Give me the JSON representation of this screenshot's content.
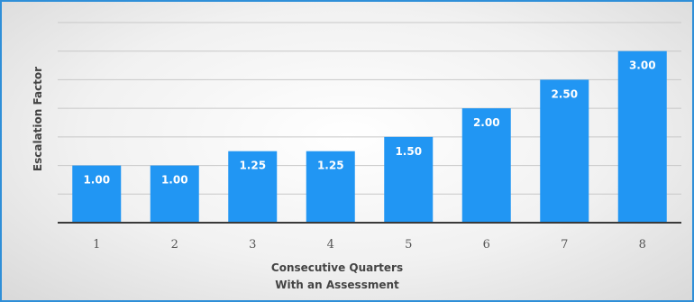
{
  "chart_data": {
    "type": "bar",
    "categories": [
      "1",
      "2",
      "3",
      "4",
      "5",
      "6",
      "7",
      "8"
    ],
    "values": [
      1.0,
      1.0,
      1.25,
      1.25,
      1.5,
      2.0,
      2.5,
      3.0
    ],
    "value_labels": [
      "1.00",
      "1.00",
      "1.25",
      "1.25",
      "1.50",
      "2.00",
      "2.50",
      "3.00"
    ],
    "title": "",
    "xlabel": [
      "Consecutive Quarters",
      "With an Assessment"
    ],
    "ylabel": "Escalation Factor",
    "ylim": [
      0,
      3.5
    ],
    "grid_step": 0.5,
    "grid": true,
    "bar_color": "#2196f3",
    "legend": "none"
  }
}
